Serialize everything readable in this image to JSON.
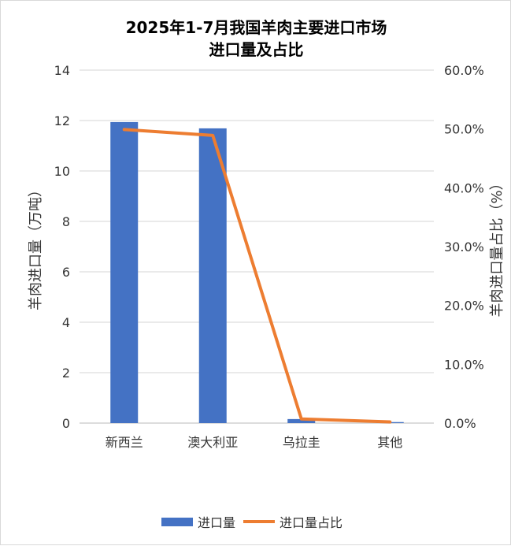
{
  "chart_data": {
    "type": "bar",
    "title_lines": [
      "2025年1-7月我国羊肉主要进口市场",
      "进口量及占比"
    ],
    "categories": [
      "新西兰",
      "澳大利亚",
      "乌拉圭",
      "其他"
    ],
    "ylabel": "羊肉进口量（万吨）",
    "y2label": "羊肉进口量占比（%）",
    "ylim": [
      0,
      14
    ],
    "y2lim": [
      0,
      60
    ],
    "yticks": [
      "0",
      "2",
      "4",
      "6",
      "8",
      "10",
      "12",
      "14"
    ],
    "y2ticks": [
      "0.0%",
      "10.0%",
      "20.0%",
      "30.0%",
      "40.0%",
      "50.0%",
      "60.0%"
    ],
    "grid": true,
    "legend_position": "bottom",
    "series": [
      {
        "name": "进口量",
        "type": "bar",
        "axis": "left",
        "color": "#4472c4",
        "values": [
          11.94,
          11.69,
          0.16,
          0.04
        ]
      },
      {
        "name": "进口量占比",
        "type": "line",
        "axis": "right",
        "color": "#ed7d31",
        "values": [
          49.9,
          48.9,
          0.7,
          0.2
        ]
      }
    ]
  }
}
